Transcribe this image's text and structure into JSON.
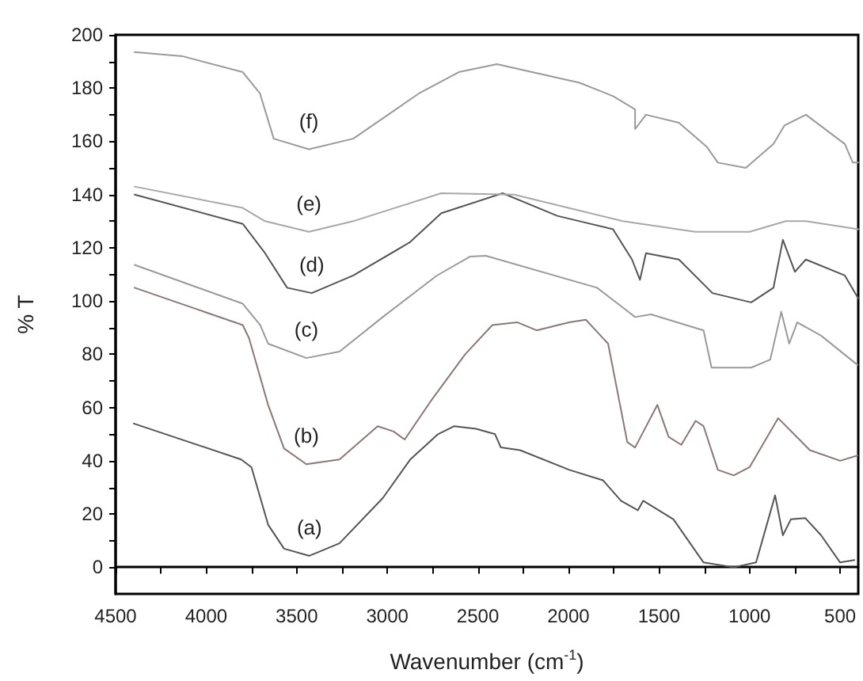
{
  "chart_data": {
    "type": "line",
    "xlabel": "Wavenumber (cm$^{-1}$)",
    "ylabel": "% T",
    "xlim": [
      4500,
      400
    ],
    "ylim": [
      -10,
      200
    ],
    "xticks": [
      4500,
      {
        "value": 4250,
        "label": null
      },
      4000,
      {
        "value": 3750,
        "label": null
      },
      3500,
      {
        "value": 3250,
        "label": null
      },
      3000,
      {
        "value": 2750,
        "label": null
      },
      2500,
      {
        "value": 2250,
        "label": null
      },
      2000,
      {
        "value": 1750,
        "label": null
      },
      1500,
      {
        "value": 1250,
        "label": null
      },
      1000,
      {
        "value": 750,
        "label": null
      },
      500
    ],
    "yticks": [
      0,
      {
        "value": 10,
        "label": null
      },
      20,
      {
        "value": 30,
        "label": null
      },
      40,
      {
        "value": 50,
        "label": null
      },
      60,
      {
        "value": 70,
        "label": null
      },
      80,
      {
        "value": 90,
        "label": null
      },
      100,
      {
        "value": 110,
        "label": null
      },
      120,
      {
        "value": 130,
        "label": null
      },
      140,
      {
        "value": 150,
        "label": null
      },
      160,
      {
        "value": 170,
        "label": null
      },
      180,
      {
        "value": 190,
        "label": null
      },
      200
    ],
    "marker": "none",
    "line_style": "solid",
    "series": [
      {
        "name": "(a)",
        "color": "#555555",
        "x": [
          4400,
          3807,
          3750,
          3658,
          3570,
          3430,
          3264,
          3025,
          2872,
          2720,
          2630,
          2510,
          2405,
          2373,
          2267,
          1995,
          1810,
          1710,
          1617,
          1587,
          1420,
          1254,
          1087,
          964,
          859,
          816,
          772,
          693,
          605,
          500,
          421
        ],
        "values": [
          54,
          40.5,
          37.6,
          16,
          7,
          4.3,
          9,
          26,
          40.6,
          50,
          53,
          52,
          50,
          45,
          44,
          36.6,
          32.7,
          25,
          21.4,
          25,
          18,
          1.8,
          0,
          1.8,
          27,
          12,
          18,
          18.5,
          12,
          1.8,
          2.7
        ]
      },
      {
        "name": "(b)",
        "color": "#8a7878",
        "x": [
          4395,
          3798,
          3763,
          3658,
          3570,
          3447,
          3264,
          3053,
          2965,
          2904,
          2754,
          2570,
          2420,
          2281,
          2176,
          1995,
          1904,
          1781,
          1675,
          1632,
          1509,
          1447,
          1377,
          1298,
          1254,
          1175,
          1087,
          1000,
          842,
          667,
          500,
          404
        ],
        "values": [
          105,
          91,
          86,
          61,
          44.6,
          38.7,
          40.5,
          53,
          51,
          48,
          63,
          80,
          91,
          92,
          89,
          92,
          93,
          84,
          47,
          45,
          61,
          49,
          46,
          55,
          53,
          36.6,
          34.5,
          37.6,
          56,
          44,
          40,
          42
        ]
      },
      {
        "name": "(c)",
        "color": "#9a9a9a",
        "x": [
          4395,
          3798,
          3702,
          3658,
          3447,
          3264,
          3025,
          2728,
          2544,
          2456,
          1842,
          1689,
          1632,
          1544,
          1254,
          1210,
          991,
          886,
          825,
          781,
          737,
          605,
          404
        ],
        "values": [
          113.6,
          99,
          91,
          84,
          78.6,
          81,
          94,
          109.5,
          116.7,
          117,
          105,
          97,
          94,
          95,
          89,
          75,
          75,
          78,
          96,
          84,
          92,
          87,
          76
        ]
      },
      {
        "name": "(d)",
        "color": "#555555",
        "x": [
          4395,
          3798,
          3675,
          3553,
          3417,
          3188,
          2877,
          2702,
          2363,
          2061,
          1754,
          1649,
          1605,
          1572,
          1390,
          1205,
          991,
          868,
          816,
          750,
          689,
          474,
          400
        ],
        "values": [
          140,
          129,
          118,
          105,
          103,
          109.6,
          122,
          133,
          140.5,
          132,
          127,
          115.6,
          108,
          118,
          115.6,
          103,
          99.5,
          105,
          123,
          111,
          115.6,
          109.6,
          101
        ]
      },
      {
        "name": "(e)",
        "color": "#a8a8a8",
        "x": [
          4395,
          3798,
          3675,
          3433,
          3188,
          2702,
          2300,
          2000,
          1700,
          1300,
          1000,
          800,
          689,
          400
        ],
        "values": [
          143,
          135,
          130,
          126,
          130,
          140.5,
          140,
          135,
          130,
          126,
          126,
          130,
          130,
          127
        ]
      },
      {
        "name": "(f)",
        "color": "#9a9a9a",
        "x": [
          4395,
          4132,
          3798,
          3703,
          3627,
          3433,
          3188,
          2825,
          2605,
          2395,
          1939,
          1754,
          1632,
          1632,
          1572,
          1390,
          1237,
          1175,
          1021,
          868,
          807,
          689,
          474,
          430,
          400
        ],
        "values": [
          193.5,
          192,
          186,
          178,
          161,
          157,
          161,
          178,
          186,
          189,
          182,
          177,
          172,
          164.6,
          170,
          167,
          158,
          152,
          150,
          159,
          166,
          170,
          159,
          152,
          152
        ]
      }
    ]
  }
}
